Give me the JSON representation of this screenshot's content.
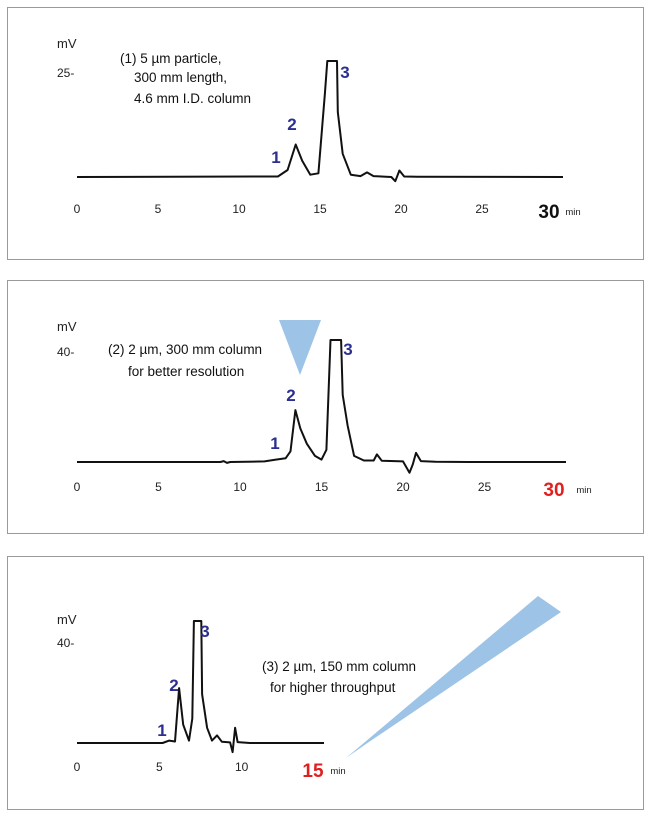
{
  "arrow_color": "#9dc3e6",
  "peak_color": "#2b2f8f",
  "chart_data": [
    {
      "type": "line",
      "ylabel": "mV",
      "ytick": "25-",
      "xlim": [
        0,
        30
      ],
      "xticks": [
        "0",
        "5",
        "10",
        "15",
        "20",
        "25"
      ],
      "x_end_label": "30",
      "x_end_color": "#111111",
      "x_unit": "min",
      "annotation": [
        "(1) 5 µm particle,",
        "300 mm length,",
        "4.6 mm I.D. column"
      ],
      "peaks": [
        {
          "label": "1",
          "x": 13.0
        },
        {
          "label": "2",
          "x": 13.5
        },
        {
          "label": "3",
          "x": 15.9
        }
      ],
      "trace": [
        [
          0,
          0
        ],
        [
          12.4,
          0.1
        ],
        [
          13.0,
          1.5
        ],
        [
          13.5,
          7.0
        ],
        [
          13.9,
          3.5
        ],
        [
          14.4,
          0.5
        ],
        [
          14.9,
          0.8
        ],
        [
          15.3,
          18
        ],
        [
          15.45,
          25
        ],
        [
          16.05,
          25
        ],
        [
          16.1,
          14
        ],
        [
          16.4,
          5
        ],
        [
          16.9,
          0.5
        ],
        [
          17.5,
          0.2
        ],
        [
          17.9,
          1.0
        ],
        [
          18.3,
          0.2
        ],
        [
          19.4,
          0.0
        ],
        [
          19.65,
          -0.9
        ],
        [
          19.9,
          1.4
        ],
        [
          20.2,
          0.1
        ],
        [
          21,
          0.05
        ],
        [
          30,
          0
        ]
      ]
    },
    {
      "type": "line",
      "ylabel": "mV",
      "ytick": "40-",
      "xlim": [
        0,
        30
      ],
      "xticks": [
        "0",
        "5",
        "10",
        "15",
        "20",
        "25"
      ],
      "x_end_label": "30",
      "x_end_color": "#e02020",
      "x_unit": "min",
      "annotation": [
        "(2) 2 µm, 300 mm column",
        "for better resolution"
      ],
      "peaks": [
        {
          "label": "1",
          "x": 12.8
        },
        {
          "label": "2",
          "x": 13.5
        },
        {
          "label": "3",
          "x": 16.0
        }
      ],
      "trace": [
        [
          0,
          0
        ],
        [
          8.8,
          0
        ],
        [
          9.0,
          0.3
        ],
        [
          9.2,
          -0.3
        ],
        [
          9.4,
          0
        ],
        [
          11.5,
          0.2
        ],
        [
          12.2,
          0.8
        ],
        [
          12.8,
          1.2
        ],
        [
          13.1,
          3.5
        ],
        [
          13.4,
          17
        ],
        [
          13.7,
          11
        ],
        [
          14.1,
          6
        ],
        [
          14.6,
          2
        ],
        [
          15.0,
          0.8
        ],
        [
          15.3,
          4
        ],
        [
          15.55,
          40
        ],
        [
          16.2,
          40
        ],
        [
          16.3,
          22
        ],
        [
          16.6,
          12
        ],
        [
          17.0,
          2
        ],
        [
          17.6,
          0.5
        ],
        [
          18.2,
          0.5
        ],
        [
          18.4,
          2.5
        ],
        [
          18.7,
          0.4
        ],
        [
          20.0,
          0.2
        ],
        [
          20.4,
          -3.5
        ],
        [
          20.6,
          -0.8
        ],
        [
          20.8,
          3.0
        ],
        [
          21.1,
          0.3
        ],
        [
          22,
          0.1
        ],
        [
          24,
          0
        ],
        [
          30,
          0
        ]
      ]
    },
    {
      "type": "line",
      "ylabel": "mV",
      "ytick": "40-",
      "xlim": [
        0,
        15
      ],
      "xticks": [
        "0",
        "5",
        "10"
      ],
      "x_end_label": "15",
      "x_end_color": "#e02020",
      "x_unit": "min",
      "annotation": [
        "(3) 2 µm, 150 mm column",
        "for higher throughput"
      ],
      "peaks": [
        {
          "label": "1",
          "x": 5.8
        },
        {
          "label": "2",
          "x": 6.2
        },
        {
          "label": "3",
          "x": 7.2
        }
      ],
      "trace": [
        [
          0,
          0
        ],
        [
          5.2,
          0
        ],
        [
          5.6,
          0.8
        ],
        [
          5.95,
          0.5
        ],
        [
          6.2,
          18
        ],
        [
          6.45,
          6
        ],
        [
          6.8,
          0.8
        ],
        [
          7.0,
          8
        ],
        [
          7.1,
          40
        ],
        [
          7.55,
          40
        ],
        [
          7.6,
          16
        ],
        [
          7.9,
          5
        ],
        [
          8.2,
          0.8
        ],
        [
          8.5,
          2.5
        ],
        [
          8.8,
          0.4
        ],
        [
          9.3,
          0.2
        ],
        [
          9.45,
          -3.0
        ],
        [
          9.6,
          5
        ],
        [
          9.75,
          0.3
        ],
        [
          10.5,
          0
        ],
        [
          15,
          0
        ]
      ]
    }
  ]
}
